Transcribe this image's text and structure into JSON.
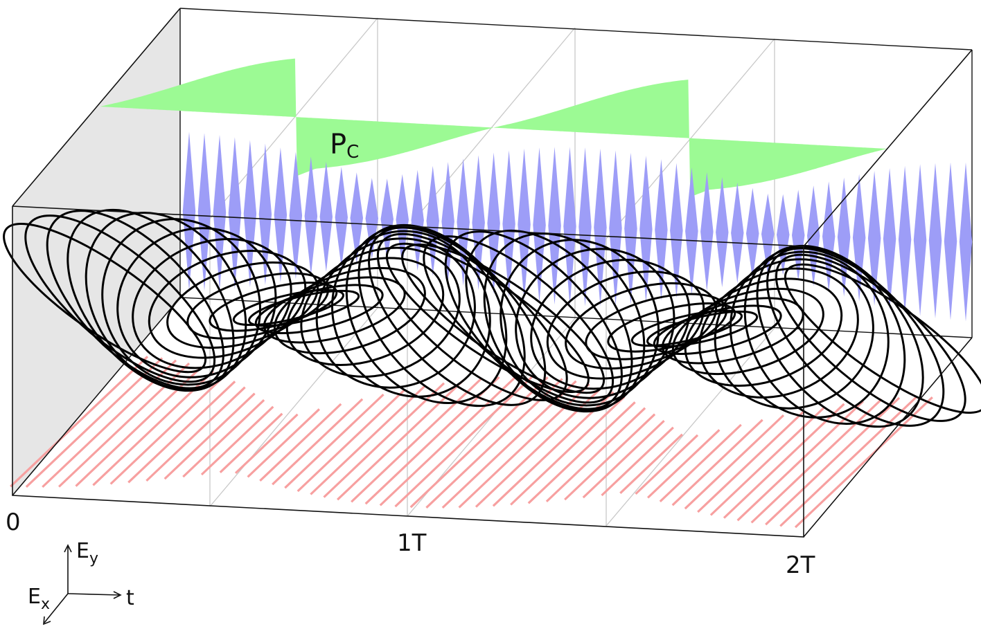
{
  "figure": {
    "time_ticks": [
      "0",
      "1T",
      "2T"
    ],
    "panel_label": {
      "main": "P",
      "sub": "C"
    },
    "axes": {
      "ey": {
        "main": "E",
        "sub": "y"
      },
      "ex": {
        "main": "E",
        "sub": "x"
      },
      "t": "t"
    },
    "colors": {
      "frame": "#111111",
      "grid": "#c8c8c8",
      "side_panel": "#e6e6e6",
      "pc_fill": "#9cfa94",
      "ey_projection": "#9d9df7",
      "ex_projection": "#f7a0a0",
      "field_trace": "#000000"
    },
    "description_params": {
      "periods_shown": 2,
      "field_oscillations_per_period": 26
    }
  }
}
